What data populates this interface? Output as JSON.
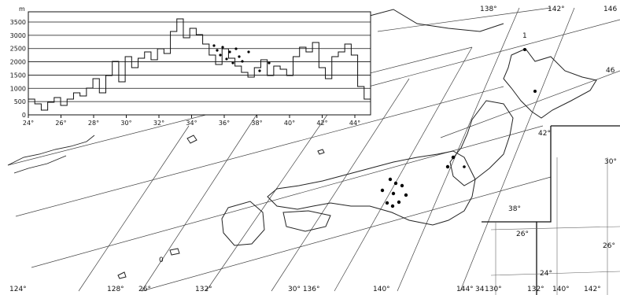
{
  "inset_profile": {
    "y_unit": "m",
    "y_ticks": [
      "3500",
      "3000",
      "2500",
      "2000",
      "1500",
      "1000",
      "500",
      "0"
    ],
    "x_ticks": [
      "24°",
      "26°",
      "28°",
      "30°",
      "32°",
      "34°",
      "36°",
      "38°",
      "40°",
      "42°",
      "44°"
    ]
  },
  "map_labels": {
    "top_lon": [
      "138°",
      "142°",
      "146"
    ],
    "bottom_lon": [
      "124°",
      "128°",
      "26°",
      "132°",
      "30° 136°",
      "140°",
      "144°",
      "34",
      "130°",
      "132°",
      "140°",
      "142°"
    ],
    "right_lat": [
      "46",
      "42°",
      "38°"
    ],
    "inset_lat": [
      "30°",
      "26°",
      "26°",
      "24°"
    ],
    "small_marks": [
      "1",
      "0"
    ]
  }
}
